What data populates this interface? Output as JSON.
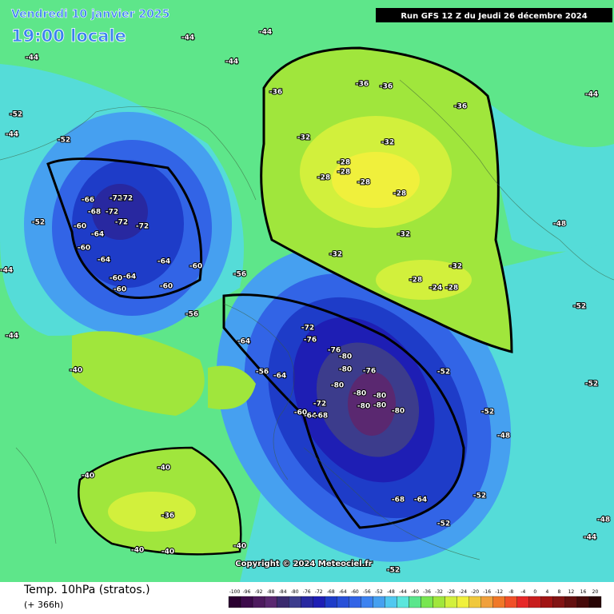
{
  "header": {
    "valid": "Vendredi 10 janvier 2025",
    "local": "19:00 locale",
    "run": "Run GFS 12 Z du Jeudi 26 décembre 2024"
  },
  "footer": {
    "title": "Temp. 10hPa (stratos.)",
    "lead": "(+ 366h)",
    "copyright": "Copyright © 2024 Meteociel.fr"
  },
  "legend": {
    "ticks": [
      -100,
      -96,
      -92,
      -88,
      -84,
      -80,
      -76,
      -72,
      -68,
      -64,
      -60,
      -56,
      -52,
      -48,
      -44,
      -40,
      -36,
      -32,
      -28,
      -24,
      -20,
      -16,
      -12,
      -8,
      -4,
      0,
      4,
      8,
      12,
      16,
      20
    ],
    "colors": [
      "#2a0030",
      "#3c0a4a",
      "#4d1a5e",
      "#5a2870",
      "#3a2a6e",
      "#3c3c8c",
      "#2828a0",
      "#1e1eb4",
      "#1e3cc8",
      "#2850d8",
      "#3264e6",
      "#3c82f0",
      "#46a0f0",
      "#50c8f0",
      "#5ae6dc",
      "#5ae68c",
      "#78e650",
      "#a0e63c",
      "#d2f03c",
      "#f0f03c",
      "#f0c83c",
      "#f0a03c",
      "#f07828",
      "#f05028",
      "#e62828",
      "#c81e1e",
      "#a01414",
      "#821414",
      "#641010",
      "#460a0a",
      "#280505"
    ]
  },
  "map_labels": [
    -66,
    -68,
    -72,
    -72,
    -72,
    -72,
    -72,
    -60,
    -64,
    -64,
    -64,
    -60,
    -60,
    -60,
    -60,
    -60,
    -64,
    -52,
    -52,
    -52,
    -72,
    -76,
    -76,
    -80,
    -76,
    -80,
    -80,
    -80,
    -80,
    -80,
    -80,
    -80,
    -72,
    -64,
    -68,
    -60,
    -68,
    -64,
    -28,
    -28,
    -28,
    -28,
    -28,
    -32,
    -32,
    -36,
    -36,
    -36,
    -36,
    -32,
    -32,
    -32,
    -28,
    -24,
    -28,
    -36,
    -40,
    -40,
    -40,
    -40,
    -40,
    -44,
    -44,
    -44,
    -44,
    -44,
    -44,
    -44,
    -44,
    -48,
    -44,
    -40,
    -64,
    -56,
    -56,
    -56,
    -64,
    -52,
    -52,
    -52,
    -52,
    -52,
    -48,
    -48,
    -52,
    -52
  ]
}
